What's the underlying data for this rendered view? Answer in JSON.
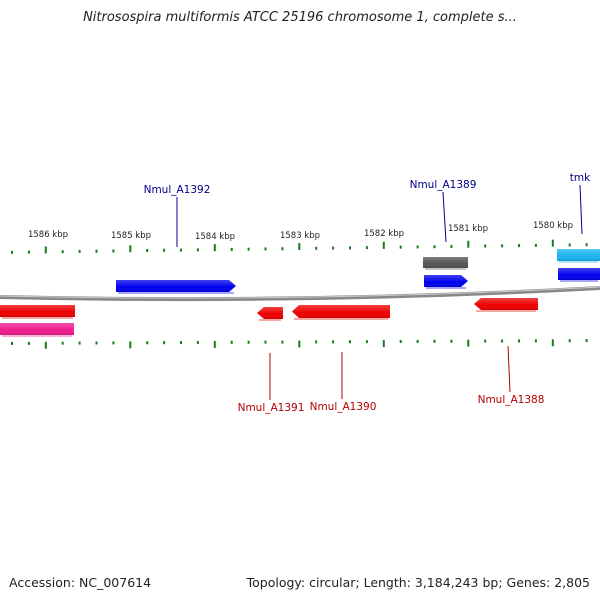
{
  "title": "Nitrosospira multiformis ATCC 25196 chromosome 1, complete s...",
  "footer": {
    "accession": "Accession: NC_007614",
    "summary": "Topology: circular; Length: 3,184,243 bp; Genes: 2,805"
  },
  "scale_labels": [
    "1586 kbp",
    "1585 kbp",
    "1584 kbp",
    "1583 kbp",
    "1582 kbp",
    "1581 kbp",
    "1580 kbp"
  ],
  "genes": [
    {
      "label": "Nmul_A1392",
      "strand": "+",
      "color": "#0000ee",
      "label_color": "#00008b"
    },
    {
      "label": "Nmul_A1389",
      "strand": "+",
      "color": "#0000ee",
      "label_color": "#00008b"
    },
    {
      "label": "",
      "strand": "+",
      "color": "#555555",
      "label_color": ""
    },
    {
      "label": "tmk",
      "strand": "+",
      "color": "#1ab3ee",
      "label_color": "#00008b"
    },
    {
      "label": "",
      "strand": "+",
      "color": "#0000ee",
      "label_color": ""
    },
    {
      "label": "",
      "strand": "-",
      "color": "#ee0000",
      "label_color": ""
    },
    {
      "label": "",
      "strand": "-",
      "color": "#ee1a8c",
      "label_color": ""
    },
    {
      "label": "Nmul_A1391",
      "strand": "-",
      "color": "#ee0000",
      "label_color": "#b30000"
    },
    {
      "label": "Nmul_A1390",
      "strand": "-",
      "color": "#ee0000",
      "label_color": "#b30000"
    },
    {
      "label": "Nmul_A1388",
      "strand": "-",
      "color": "#ee0000",
      "label_color": "#b30000"
    }
  ],
  "colors": {
    "backbone": "#888888",
    "ticks": "#1a7a1a",
    "plus_label": "#00008b",
    "minus_label": "#b30000"
  }
}
